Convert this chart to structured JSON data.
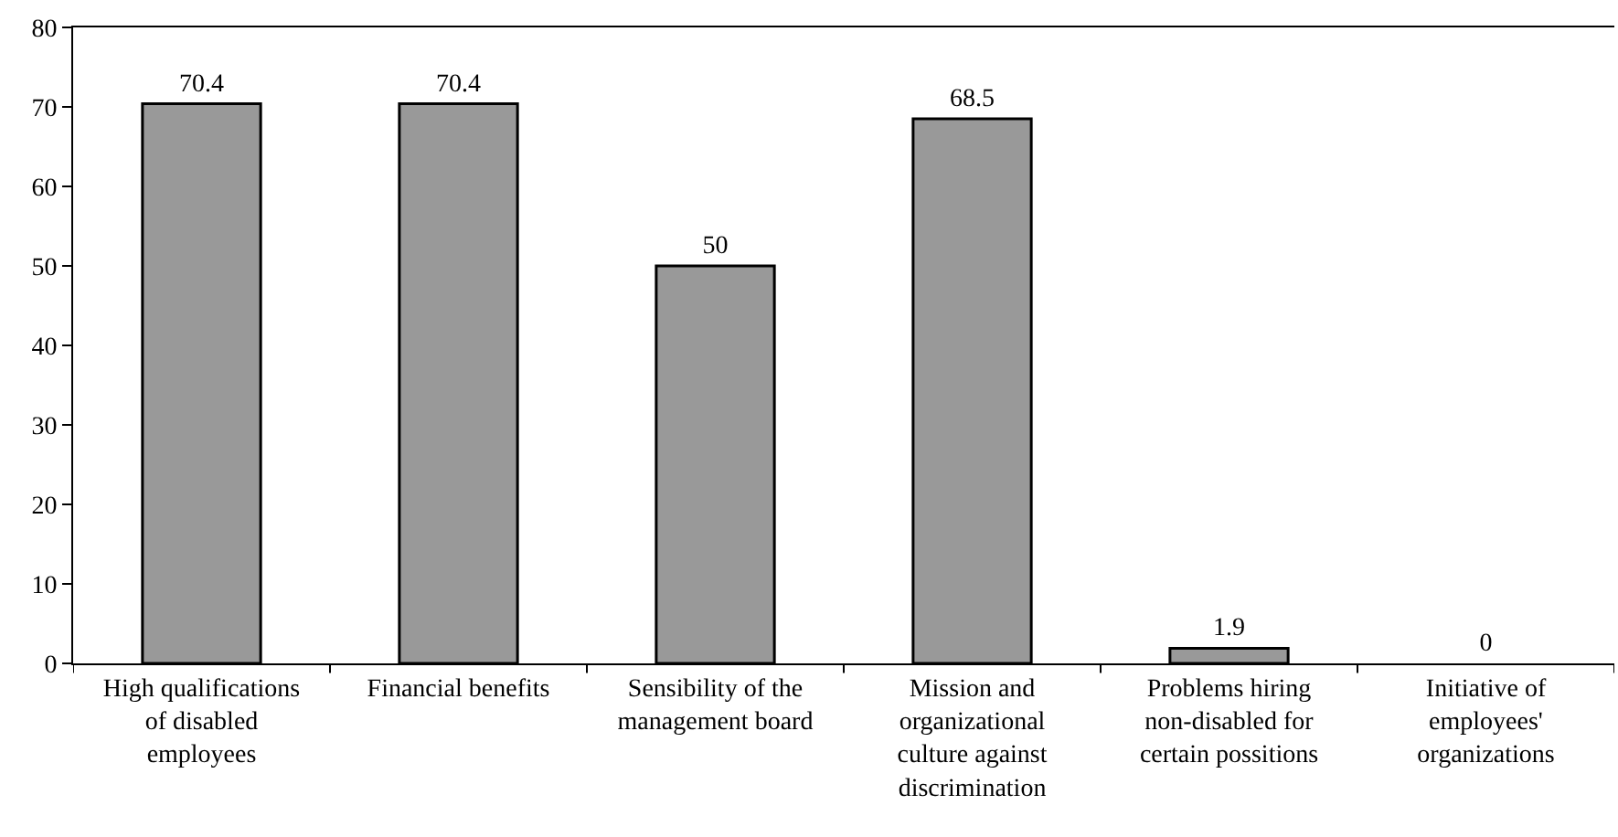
{
  "chart_data": {
    "type": "bar",
    "categories": [
      "High qualifications of disabled employees",
      "Financial benefits",
      "Sensibility of the management board",
      "Mission and organizational culture against discrimination",
      "Problems hiring non-disabled for certain possitions",
      "Initiative of employees' organizations"
    ],
    "values": [
      70.4,
      70.4,
      50,
      68.5,
      1.9,
      0
    ],
    "color": "#999999",
    "ylim": [
      0,
      80
    ],
    "yticks": [
      0,
      10,
      20,
      30,
      40,
      50,
      60,
      70,
      80
    ],
    "grid": false,
    "data_labels": true
  }
}
